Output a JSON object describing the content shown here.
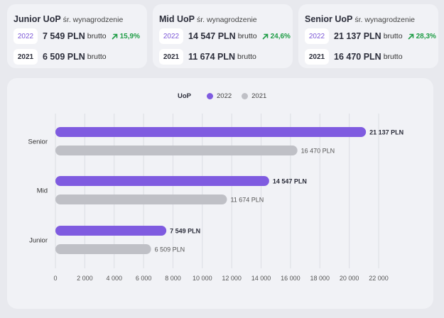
{
  "cards": [
    {
      "level": "Junior UoP",
      "subtitle": "śr. wynagrodzenie",
      "row2022": {
        "year": "2022",
        "amount": "7 549 PLN",
        "unit": "brutto",
        "change": "15,9%"
      },
      "row2021": {
        "year": "2021",
        "amount": "6 509 PLN",
        "unit": "brutto"
      }
    },
    {
      "level": "Mid UoP",
      "subtitle": "śr. wynagrodzenie",
      "row2022": {
        "year": "2022",
        "amount": "14 547 PLN",
        "unit": "brutto",
        "change": "24,6%"
      },
      "row2021": {
        "year": "2021",
        "amount": "11 674 PLN",
        "unit": "brutto"
      }
    },
    {
      "level": "Senior UoP",
      "subtitle": "śr. wynagrodzenie",
      "row2022": {
        "year": "2022",
        "amount": "21 137 PLN",
        "unit": "brutto",
        "change": "28,3%"
      },
      "row2021": {
        "year": "2021",
        "amount": "16 470 PLN",
        "unit": "brutto"
      }
    }
  ],
  "colors": {
    "series2022": "#7f5be0",
    "series2021": "#bfc0c6",
    "change_positive": "#1f9d46"
  },
  "chart_data": {
    "type": "bar",
    "orientation": "horizontal",
    "legend_title": "UoP",
    "legend_position": "top-center",
    "categories": [
      "Senior",
      "Mid",
      "Junior"
    ],
    "series": [
      {
        "name": "2022",
        "values": [
          21137,
          14547,
          7549
        ],
        "labels": [
          "21 137 PLN",
          "14 547 PLN",
          "7 549 PLN"
        ]
      },
      {
        "name": "2021",
        "values": [
          16470,
          11674,
          6509
        ],
        "labels": [
          "16 470 PLN",
          "11 674 PLN",
          "6 509 PLN"
        ]
      }
    ],
    "xlim": [
      0,
      22000
    ],
    "xticks": [
      0,
      2000,
      4000,
      6000,
      8000,
      10000,
      12000,
      14000,
      16000,
      18000,
      20000,
      22000
    ],
    "xtick_labels": [
      "0",
      "2 000",
      "4 000",
      "6 000",
      "8 000",
      "10 000",
      "12 000",
      "14 000",
      "16 000",
      "18 000",
      "20 000",
      "22 000"
    ],
    "grid": true
  }
}
